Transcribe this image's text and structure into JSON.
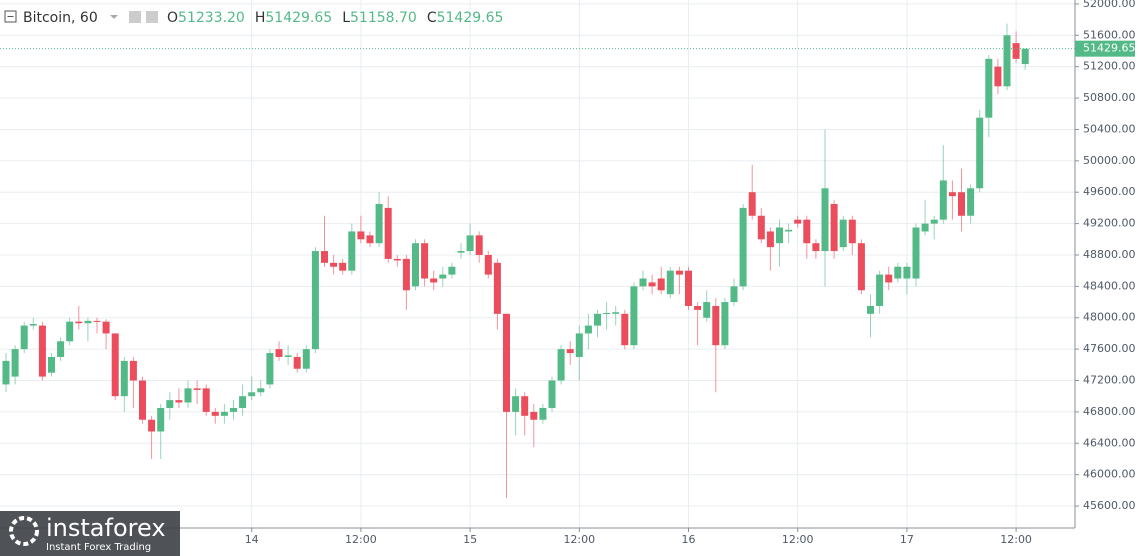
{
  "chart_data": {
    "type": "candlestick",
    "header": {
      "symbol": "Bitcoin, 60",
      "fields": [
        {
          "key": "O",
          "value": "51233.20"
        },
        {
          "key": "H",
          "value": "51429.65"
        },
        {
          "key": "L",
          "value": "51158.70"
        },
        {
          "key": "C",
          "value": "51429.65"
        }
      ]
    },
    "last_price_label": "51429.65",
    "watermark": {
      "brand": "instaforex",
      "tagline": "Instant Forex Trading"
    },
    "up_color": "#53b987",
    "down_color": "#eb4d5c",
    "grid": true,
    "ylim": [
      45320,
      52050
    ],
    "yticks": [
      {
        "value": 45600,
        "label": "45600.00"
      },
      {
        "value": 46000,
        "label": "46000.00"
      },
      {
        "value": 46400,
        "label": "46400.00"
      },
      {
        "value": 46800,
        "label": "46800.00"
      },
      {
        "value": 47200,
        "label": "47200.00"
      },
      {
        "value": 47600,
        "label": "47600.00"
      },
      {
        "value": 48000,
        "label": "48000.00"
      },
      {
        "value": 48400,
        "label": "48400.00"
      },
      {
        "value": 48800,
        "label": "48800.00"
      },
      {
        "value": 49200,
        "label": "49200.00"
      },
      {
        "value": 49600,
        "label": "49600.00"
      },
      {
        "value": 50000,
        "label": "50000.00"
      },
      {
        "value": 50400,
        "label": "50400.00"
      },
      {
        "value": 50800,
        "label": "50800.00"
      },
      {
        "value": 51200,
        "label": "51200.00"
      },
      {
        "value": 51600,
        "label": "51600.00"
      },
      {
        "value": 52000,
        "label": "52000.00"
      }
    ],
    "categories": [
      null,
      null,
      null,
      null,
      null,
      null,
      null,
      null,
      null,
      null,
      null,
      null,
      null,
      null,
      null,
      null,
      null,
      null,
      null,
      null,
      null,
      null,
      null,
      null,
      null,
      null,
      null,
      "14",
      null,
      null,
      null,
      null,
      null,
      null,
      null,
      null,
      null,
      null,
      null,
      "12:00",
      null,
      null,
      null,
      null,
      null,
      null,
      null,
      null,
      null,
      null,
      null,
      "15",
      null,
      null,
      null,
      null,
      null,
      null,
      null,
      null,
      null,
      null,
      null,
      "12:00",
      null,
      null,
      null,
      null,
      null,
      null,
      null,
      null,
      null,
      null,
      null,
      "16",
      null,
      null,
      null,
      null,
      null,
      null,
      null,
      null,
      null,
      null,
      null,
      "12:00",
      null,
      null,
      null,
      null,
      null,
      null,
      null,
      null,
      null,
      null,
      null,
      "17",
      null,
      null,
      null,
      null,
      null,
      null,
      null,
      null,
      null,
      null,
      null,
      "12:00",
      null
    ],
    "open": [
      47150,
      47250,
      47600,
      47900,
      47900,
      47300,
      47500,
      47700,
      47950,
      47930,
      47960,
      47950,
      47800,
      47000,
      47450,
      47200,
      46700,
      46550,
      46850,
      46950,
      46920,
      47100,
      47100,
      46800,
      46750,
      46800,
      46850,
      47000,
      47050,
      47150,
      47600,
      47500,
      47500,
      47350,
      47600,
      48850,
      48700,
      48700,
      48600,
      49100,
      49050,
      48950,
      49400,
      48750,
      48750,
      48400,
      48950,
      48500,
      48500,
      48550,
      48830,
      48850,
      49050,
      48800,
      48700,
      48050,
      46800,
      47000,
      46800,
      46700,
      46850,
      47200,
      47600,
      47500,
      47800,
      47900,
      48050,
      48050,
      48050,
      47650,
      48400,
      48450,
      48500,
      48300,
      48600,
      48600,
      48150,
      48000,
      48150,
      47650,
      48200,
      48400,
      49600,
      49300,
      49100,
      48950,
      49100,
      49250,
      49250,
      48950,
      48850,
      49450,
      48900,
      49250,
      48950,
      48050,
      48150,
      48550,
      48500,
      48500,
      48500,
      49100,
      49200,
      49250,
      49600,
      49600,
      49300,
      49650,
      50550,
      51200,
      50950,
      51500,
      51233.2
    ],
    "high": [
      47550,
      47650,
      47950,
      48000,
      47950,
      47550,
      47750,
      48000,
      48150,
      48000,
      48000,
      47980,
      47800,
      47500,
      47500,
      47250,
      46750,
      46900,
      47050,
      47100,
      47200,
      47200,
      47150,
      46850,
      46900,
      46950,
      47150,
      47250,
      47200,
      47600,
      47700,
      47650,
      47550,
      47650,
      48900,
      49300,
      48800,
      48750,
      49200,
      49300,
      49100,
      49600,
      49550,
      48800,
      48800,
      49000,
      49000,
      48600,
      48650,
      48700,
      48950,
      49200,
      49100,
      48850,
      48750,
      48050,
      47100,
      47050,
      46900,
      46900,
      47250,
      47650,
      47700,
      47900,
      48050,
      48100,
      48200,
      48150,
      48100,
      48450,
      48600,
      48550,
      48650,
      48650,
      48650,
      48650,
      48200,
      48350,
      48250,
      48250,
      48500,
      49450,
      49950,
      49400,
      49150,
      49250,
      49200,
      49300,
      49300,
      49000,
      50400,
      49500,
      49300,
      49300,
      49000,
      48300,
      48600,
      48650,
      48700,
      48700,
      49200,
      49500,
      49300,
      50200,
      49750,
      49900,
      49700,
      50650,
      51350,
      51300,
      51750,
      51650,
      51429.65
    ],
    "low": [
      47050,
      47150,
      47550,
      47850,
      47200,
      47250,
      47450,
      47650,
      47850,
      47700,
      47800,
      47600,
      46950,
      46800,
      46850,
      46650,
      46200,
      46200,
      46700,
      46850,
      46850,
      46900,
      46750,
      46650,
      46650,
      46700,
      46750,
      46950,
      47000,
      47100,
      47450,
      47400,
      47300,
      47300,
      47550,
      48650,
      48550,
      48550,
      48550,
      48950,
      48900,
      48900,
      48700,
      48650,
      48100,
      48350,
      48400,
      48350,
      48400,
      48500,
      48750,
      48800,
      48700,
      48500,
      47850,
      45700,
      46500,
      46500,
      46350,
      46650,
      46800,
      47150,
      47400,
      47200,
      47600,
      47750,
      47850,
      47900,
      47600,
      47600,
      48350,
      48300,
      48300,
      48250,
      48300,
      48100,
      47650,
      47950,
      47050,
      47600,
      48150,
      48350,
      49250,
      48950,
      48600,
      48650,
      48950,
      49150,
      48750,
      48750,
      48400,
      48750,
      48850,
      48800,
      48300,
      47750,
      48050,
      48350,
      48450,
      48300,
      48400,
      49050,
      49000,
      49200,
      49250,
      49100,
      49200,
      49600,
      50300,
      50850,
      50900,
      51250,
      51158.7
    ],
    "close": [
      47450,
      47600,
      47900,
      47920,
      47250,
      47500,
      47700,
      47950,
      47930,
      47960,
      47950,
      47800,
      47000,
      47450,
      47200,
      46700,
      46550,
      46850,
      46950,
      46920,
      47100,
      47080,
      46800,
      46750,
      46800,
      46850,
      47000,
      47050,
      47100,
      47550,
      47500,
      47520,
      47350,
      47600,
      48850,
      48700,
      48650,
      48600,
      49100,
      49000,
      48950,
      49450,
      48750,
      48730,
      48350,
      48950,
      48500,
      48450,
      48550,
      48650,
      48850,
      49050,
      48800,
      48550,
      48050,
      46800,
      47000,
      46750,
      46700,
      46850,
      47200,
      47600,
      47550,
      47800,
      47900,
      48050,
      48060,
      48070,
      47650,
      48400,
      48500,
      48400,
      48350,
      48600,
      48550,
      48150,
      48100,
      48200,
      47650,
      48200,
      48400,
      49400,
      49300,
      49000,
      48900,
      49150,
      49120,
      49200,
      48950,
      48850,
      49650,
      48850,
      49250,
      48950,
      48350,
      48150,
      48550,
      48450,
      48650,
      48650,
      49150,
      49200,
      49250,
      49750,
      49550,
      49300,
      49650,
      50550,
      51300,
      50950,
      51600,
      51300,
      51429.65
    ]
  }
}
